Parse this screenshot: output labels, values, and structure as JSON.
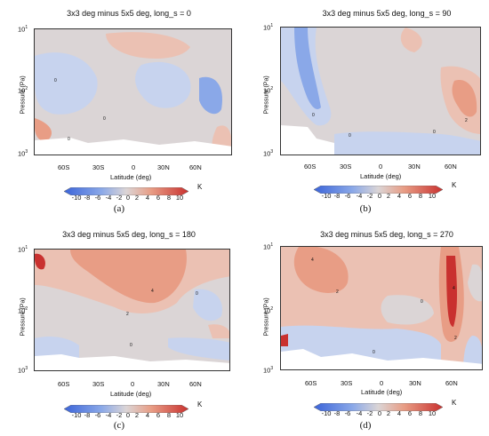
{
  "colors": {
    "neg_strong": "#3b64d9",
    "neg_mid": "#8aa8e8",
    "neg_light": "#c7d3ee",
    "zero": "#dbd5d6",
    "pos_light": "#ebc1b3",
    "pos_mid": "#e89d85",
    "pos_strong": "#c9312f",
    "missing": "#ffffff"
  },
  "chart_data": [
    {
      "panel": "(a)",
      "type": "heatmap",
      "title": "3x3 deg minus 5x5 deg, long_s = 0",
      "ylabel": "Pressure (Pa)",
      "xlabel": "Latitude (deg)",
      "yscale": "log",
      "ylim": [
        1000,
        10
      ],
      "yticks": [
        "10",
        "10",
        "10"
      ],
      "yexps": [
        "1",
        "2",
        "3"
      ],
      "xlim": [
        -90,
        90
      ],
      "xticks": [
        "60S",
        "30S",
        "0",
        "30N",
        "60N"
      ],
      "colorbar": {
        "ticks": [
          "-10",
          "-8",
          "-6",
          "-4",
          "-2",
          "0",
          "2",
          "4",
          "6",
          "8",
          "10"
        ],
        "unit": "K"
      },
      "contour_labels": [
        "0",
        "0",
        "0"
      ],
      "caption": "(a)"
    },
    {
      "panel": "(b)",
      "type": "heatmap",
      "title": "3x3 deg minus 5x5 deg, long_s = 90",
      "ylabel": "Pressure (Pa)",
      "xlabel": "Latitude (deg)",
      "yscale": "log",
      "ylim": [
        1000,
        10
      ],
      "yticks": [
        "10",
        "10",
        "10"
      ],
      "yexps": [
        "1",
        "2",
        "3"
      ],
      "xlim": [
        -90,
        90
      ],
      "xticks": [
        "60S",
        "30S",
        "0",
        "30N",
        "60N"
      ],
      "colorbar": {
        "ticks": [
          "-10",
          "-8",
          "-6",
          "-4",
          "-2",
          "0",
          "2",
          "4",
          "6",
          "8",
          "10"
        ],
        "unit": "K"
      },
      "contour_labels": [
        "0",
        "0",
        "0",
        "2"
      ],
      "caption": "(b)"
    },
    {
      "panel": "(c)",
      "type": "heatmap",
      "title": "3x3 deg minus 5x5 deg, long_s = 180",
      "ylabel": "Pressure (Pa)",
      "xlabel": "Latitude (deg)",
      "yscale": "log",
      "ylim": [
        1000,
        10
      ],
      "yticks": [
        "10",
        "10",
        "10"
      ],
      "yexps": [
        "1",
        "2",
        "3"
      ],
      "xlim": [
        -90,
        90
      ],
      "xticks": [
        "60S",
        "30S",
        "0",
        "30N",
        "60N"
      ],
      "colorbar": {
        "ticks": [
          "-10",
          "-8",
          "-6",
          "-4",
          "-2",
          "0",
          "2",
          "4",
          "6",
          "8",
          "10"
        ],
        "unit": "K"
      },
      "contour_labels": [
        "4",
        "2",
        "0",
        "0"
      ],
      "caption": "(c)"
    },
    {
      "panel": "(d)",
      "type": "heatmap",
      "title": "3x3 deg minus 5x5 deg, long_s = 270",
      "ylabel": "Pressure (Pa)",
      "xlabel": "Latitude (deg)",
      "yscale": "log",
      "ylim": [
        1000,
        10
      ],
      "yticks": [
        "10",
        "10",
        "10"
      ],
      "yexps": [
        "1",
        "2",
        "3"
      ],
      "xlim": [
        -90,
        90
      ],
      "xticks": [
        "60S",
        "30S",
        "0",
        "30N",
        "60N"
      ],
      "colorbar": {
        "ticks": [
          "-10",
          "-8",
          "-6",
          "-4",
          "-2",
          "0",
          "2",
          "4",
          "6",
          "8",
          "10"
        ],
        "unit": "K"
      },
      "contour_labels": [
        "4",
        "2",
        "4",
        "2",
        "0",
        "0"
      ],
      "caption": "(d)"
    }
  ]
}
